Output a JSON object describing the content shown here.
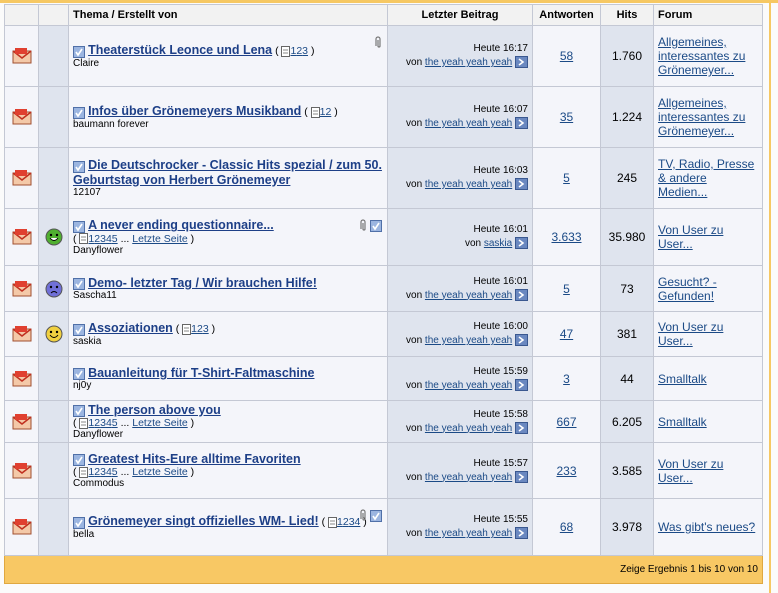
{
  "header": {
    "columns": [
      "Thema / Erstellt von",
      "Letzter Beitrag",
      "Antworten",
      "Hits",
      "Forum"
    ]
  },
  "labels": {
    "by": "von",
    "ellipsis": "...",
    "last_page": "Letzte Seite",
    "open": "(",
    "close": ")"
  },
  "rows": [
    {
      "title": "Theaterstück Leonce und Lena",
      "pages": [
        "1",
        "2",
        "3"
      ],
      "author": "Claire",
      "attachment": true,
      "time": "Heute 16:17",
      "user": "the yeah yeah yeah",
      "replies": "58",
      "hits": "1.760",
      "forum": "Allgemeines, interessantes zu Grönemeyer..."
    },
    {
      "title": "Infos über Grönemeyers Musikband",
      "pages": [
        "1",
        "2"
      ],
      "author": "baumann forever",
      "time": "Heute 16:07",
      "user": "the yeah yeah yeah",
      "replies": "35",
      "hits": "1.224",
      "forum": "Allgemeines, interessantes zu Grönemeyer..."
    },
    {
      "title": "Die Deutschrocker - Classic Hits spezial / zum 50. Geburtstag von Herbert Grönemeyer",
      "author": "12107",
      "time": "Heute 16:03",
      "user": "the yeah yeah yeah",
      "replies": "5",
      "hits": "245",
      "forum": "TV, Radio, Presse & andere Medien..."
    },
    {
      "title": "A never ending questionnaire...",
      "pages": [
        "1",
        "2",
        "3",
        "4",
        "5"
      ],
      "last_page": true,
      "author": "Danyflower",
      "attachment": true,
      "checked": true,
      "mood": "grin",
      "time": "Heute 16:01",
      "user": "saskia",
      "replies": "3.633",
      "hits": "35.980",
      "forum": "Von User zu User..."
    },
    {
      "title": "Demo- letzter Tag / Wir brauchen Hilfe!",
      "author": "Sascha11",
      "mood": "sad",
      "time": "Heute 16:01",
      "user": "the yeah yeah yeah",
      "replies": "5",
      "hits": "73",
      "forum": "Gesucht? - Gefunden!"
    },
    {
      "title": "Assoziationen",
      "pages": [
        "1",
        "2",
        "3"
      ],
      "author": "saskia",
      "mood": "smile",
      "time": "Heute 16:00",
      "user": "the yeah yeah yeah",
      "replies": "47",
      "hits": "381",
      "forum": "Von User zu User..."
    },
    {
      "title": "Bauanleitung für T-Shirt-Faltmaschine",
      "author": "nj0y",
      "time": "Heute 15:59",
      "user": "the yeah yeah yeah",
      "replies": "3",
      "hits": "44",
      "forum": "Smalltalk"
    },
    {
      "title": "The person above you",
      "pages": [
        "1",
        "2",
        "3",
        "4",
        "5"
      ],
      "last_page": true,
      "author": "Danyflower",
      "time": "Heute 15:58",
      "user": "the yeah yeah yeah",
      "replies": "667",
      "hits": "6.205",
      "forum": "Smalltalk"
    },
    {
      "title": "Greatest Hits-Eure alltime Favoriten",
      "pages": [
        "1",
        "2",
        "3",
        "4",
        "5"
      ],
      "last_page": true,
      "author": "Commodus",
      "time": "Heute 15:57",
      "user": "the yeah yeah yeah",
      "replies": "233",
      "hits": "3.585",
      "forum": "Von User zu User..."
    },
    {
      "title": "Grönemeyer singt offizielles WM- Lied!",
      "pages": [
        "1",
        "2",
        "3",
        "4"
      ],
      "author": "bella",
      "attachment": true,
      "checked": true,
      "time": "Heute 15:55",
      "user": "the yeah yeah yeah",
      "replies": "68",
      "hits": "3.978",
      "forum": "Was gibt's neues?"
    }
  ],
  "footer": {
    "text": "Zeige Ergebnis 1 bis 10 von 10"
  }
}
